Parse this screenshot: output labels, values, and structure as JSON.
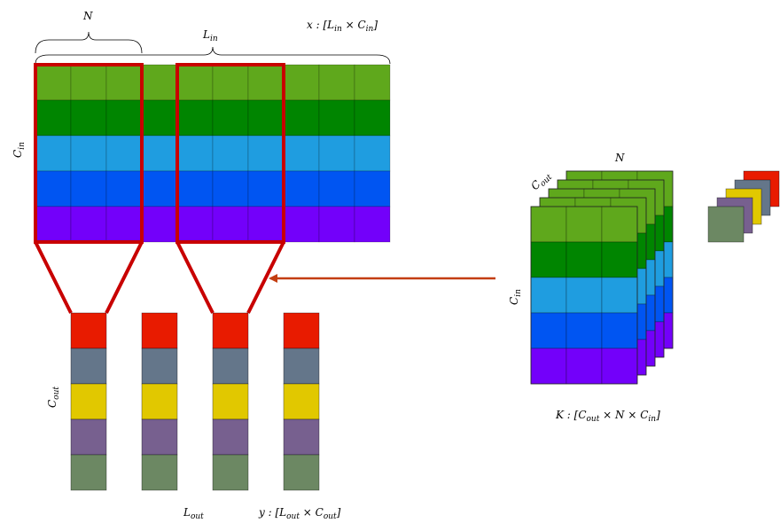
{
  "labels": {
    "N_top": "N",
    "L_in": "L",
    "L_in_sub": "in",
    "x_shape": "x : [L",
    "x_shape_sub1": "in",
    "x_shape_mid": " × C",
    "x_shape_sub2": "in",
    "x_shape_end": "]",
    "C_in_left": "C",
    "C_in_left_sub": "in",
    "C_out_left": "C",
    "C_out_left_sub": "out",
    "L_out": "L",
    "L_out_sub": "out",
    "y_shape": "y : [L",
    "y_shape_sub1": "out",
    "y_shape_mid": " × C",
    "y_shape_sub2": "out",
    "y_shape_end": "]",
    "N_kernel": "N",
    "C_out_kernel": "C",
    "C_out_kernel_sub": "out",
    "C_in_kernel": "C",
    "C_in_kernel_sub": "in",
    "K_shape": "K : [C",
    "K_shape_sub1": "out",
    "K_shape_mid1": " × N × C",
    "K_shape_sub2": "in",
    "K_shape_end": "]"
  },
  "input_channel_colors": [
    "#5fa81c",
    "#008500",
    "#1f9de0",
    "#0055f2",
    "#7300fa"
  ],
  "output_channel_colors": [
    "#e81b00",
    "#64768a",
    "#e1c800",
    "#77608f",
    "#6c8863"
  ],
  "highlight_color": "#c80000",
  "arrow_color": "#c33d10",
  "input_length": 10,
  "kernel_size": 3,
  "output_length": 4
}
